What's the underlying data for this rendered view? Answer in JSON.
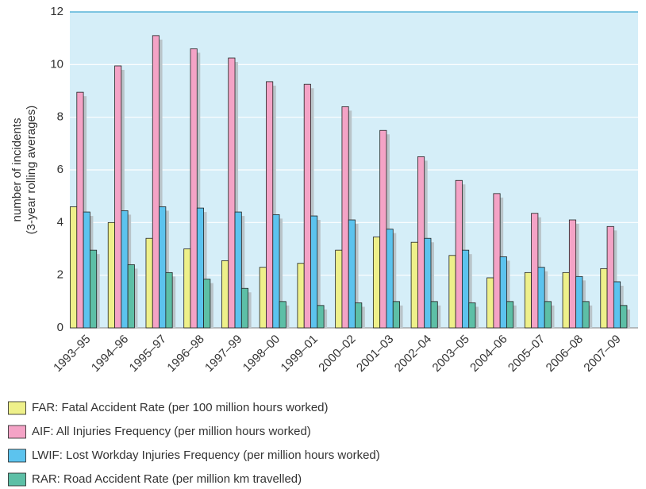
{
  "chart_data": {
    "type": "bar",
    "ylabel": [
      "number of incidents",
      "(3-year rolling averages)"
    ],
    "categories": [
      "1993–95",
      "1994–96",
      "1995–97",
      "1996–98",
      "1997–99",
      "1998–00",
      "1999–01",
      "2000–02",
      "2001–03",
      "2002–04",
      "2003–05",
      "2004–06",
      "2005–07",
      "2006–08",
      "2007–09"
    ],
    "series": [
      {
        "name": "FAR:  Fatal Accident Rate (per 100 million hours worked)",
        "color": "#eef08a",
        "values": [
          4.6,
          4.0,
          3.4,
          3.0,
          2.55,
          2.3,
          2.45,
          2.95,
          3.45,
          3.25,
          2.75,
          1.9,
          2.1,
          2.1,
          2.25
        ]
      },
      {
        "name": "AIF:   All Injuries Frequency (per million hours worked)",
        "color": "#f4a3c6",
        "values": [
          8.95,
          9.95,
          11.1,
          10.6,
          10.25,
          9.35,
          9.25,
          8.4,
          7.5,
          6.5,
          5.6,
          5.1,
          4.35,
          4.1,
          3.85
        ]
      },
      {
        "name": "LWIF: Lost Workday Injuries Frequency (per million hours worked)",
        "color": "#5cc3ee",
        "values": [
          4.4,
          4.45,
          4.6,
          4.55,
          4.4,
          4.3,
          4.25,
          4.1,
          3.75,
          3.4,
          2.95,
          2.7,
          2.3,
          1.95,
          1.75
        ]
      },
      {
        "name": "RAR: Road Accident Rate (per million km travelled)",
        "color": "#5dbfa6",
        "values": [
          2.95,
          2.4,
          2.1,
          1.85,
          1.5,
          1.0,
          0.85,
          0.95,
          1.0,
          1.0,
          0.95,
          1.0,
          1.0,
          1.0,
          0.85
        ]
      }
    ],
    "ylim": [
      0,
      12
    ],
    "yticks": [
      0,
      2,
      4,
      6,
      8,
      10,
      12
    ],
    "grid": true,
    "legend": "bottom"
  }
}
